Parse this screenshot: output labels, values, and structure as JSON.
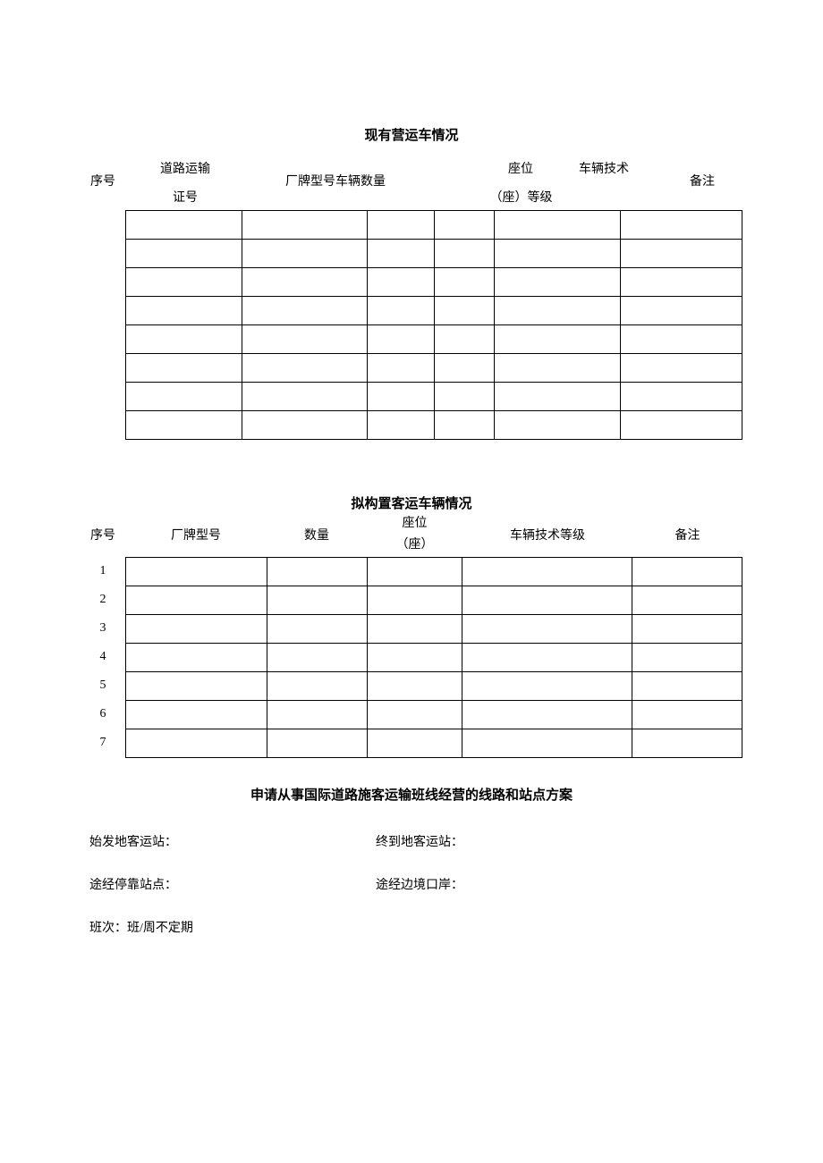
{
  "section1": {
    "title": "现有营运车情况",
    "headers": {
      "seq": "序号",
      "cert_line1": "道路运输",
      "cert_line2": "证号",
      "model_qty": "厂牌型号车辆数量",
      "seats_line1": "座位",
      "seats_line2": "（座）等级",
      "tech": "车辆技术",
      "remark": "备注"
    },
    "row_count": 8,
    "col_widths": [
      "130px",
      "140px",
      "76px",
      "67px",
      "141px",
      "136px"
    ]
  },
  "section2": {
    "title": "拟构置客运车辆情况",
    "headers": {
      "seq": "序号",
      "model": "厂牌型号",
      "qty": "数量",
      "seats_line1": "座位",
      "seats_line2": "（座）",
      "tech": "车辆技术等级",
      "remark": "备注"
    },
    "row_numbers": [
      "1",
      "2",
      "3",
      "4",
      "5",
      "6",
      "7"
    ],
    "col_widths": [
      "158px",
      "112px",
      "107px",
      "190px",
      "123px"
    ]
  },
  "section3": {
    "title": "申请从事国际道路施客运输班线经营的线路和站点方案",
    "fields": {
      "start_station": "始发地客运站：",
      "end_station": "终到地客运站：",
      "stop_points": "途经停靠站点：",
      "border_port": "途经边境口岸：",
      "frequency": "班次：班/周不定期"
    }
  },
  "colors": {
    "text": "#000000",
    "background": "#ffffff",
    "border": "#000000"
  }
}
